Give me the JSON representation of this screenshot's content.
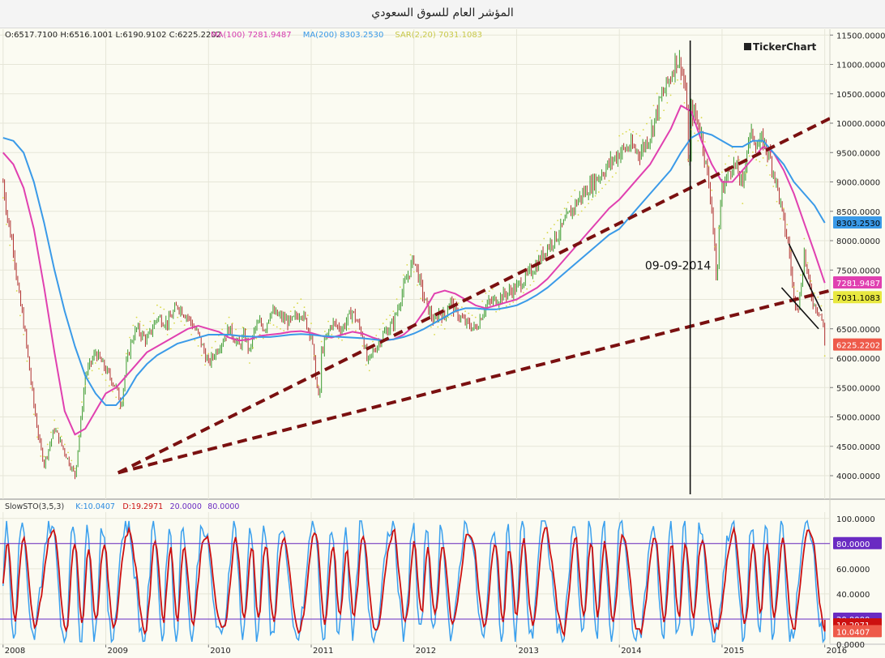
{
  "window": {
    "title": "المؤشر العام للسوق السعودي"
  },
  "logo": {
    "text": "TickerChart"
  },
  "colors": {
    "price": "#3d8c2e",
    "ma100": "#e040b0",
    "ma200": "#3a9ae8",
    "sar": "#d9d94a",
    "trend": "#7a1010",
    "stoK": "#3aa0ee",
    "stoD": "#cc1010",
    "stoLevel": "#6a2bc2",
    "grid": "#e6e6d8"
  },
  "chart_data": [
    {
      "type": "line",
      "panel": "price",
      "ohlc_readout": "O:6517.7100 H:6516.1001 L:6190.9102 C:6225.2202",
      "legend": [
        {
          "text": "MA(100) 7281.9487",
          "color": "#d63cb0"
        },
        {
          "text": "MA(200) 8303.2530",
          "color": "#3a9ae8"
        },
        {
          "text": "SAR(2,20) 7031.1083",
          "color": "#c9c94a"
        }
      ],
      "ylim": [
        3600,
        11600
      ],
      "y_ticks": [
        {
          "value": 4000,
          "label": "4000.0000"
        },
        {
          "value": 4500,
          "label": "4500.0000"
        },
        {
          "value": 5000,
          "label": "5000.0000"
        },
        {
          "value": 5500,
          "label": "5500.0000"
        },
        {
          "value": 6000,
          "label": "6000.0000"
        },
        {
          "value": 6500,
          "label": "6500.0000"
        },
        {
          "value": 7000,
          "label": "7000.0000"
        },
        {
          "value": 7500,
          "label": "7500.0000"
        },
        {
          "value": 8000,
          "label": "8000.0000"
        },
        {
          "value": 8500,
          "label": "8500.0000"
        },
        {
          "value": 9000,
          "label": "9000.0000"
        },
        {
          "value": 9500,
          "label": "9500.0000"
        },
        {
          "value": 10000,
          "label": "10000.0000"
        },
        {
          "value": 10500,
          "label": "10500.0000"
        },
        {
          "value": 11000,
          "label": "11000.0000"
        },
        {
          "value": 11500,
          "label": "11500.0000"
        }
      ],
      "xlim": [
        2007.97,
        2016.05
      ],
      "x_ticks": [
        {
          "value": 2008.0,
          "label": "2008"
        },
        {
          "value": 2009.0,
          "label": "2009"
        },
        {
          "value": 2010.0,
          "label": "2010"
        },
        {
          "value": 2011.0,
          "label": "2011"
        },
        {
          "value": 2012.0,
          "label": "2012"
        },
        {
          "value": 2013.0,
          "label": "2013"
        },
        {
          "value": 2014.0,
          "label": "2014"
        },
        {
          "value": 2015.0,
          "label": "2015"
        },
        {
          "value": 2016.0,
          "label": "2016"
        }
      ],
      "series": [
        {
          "name": "",
          "role": "price",
          "x": [
            2008.0,
            2008.05,
            2008.1,
            2008.15,
            2008.2,
            2008.25,
            2008.3,
            2008.35,
            2008.4,
            2008.5,
            2008.6,
            2008.7,
            2008.75,
            2008.8,
            2008.9,
            2009.0,
            2009.1,
            2009.15,
            2009.2,
            2009.25,
            2009.3,
            2009.4,
            2009.5,
            2009.6,
            2009.7,
            2009.8,
            2009.9,
            2010.0,
            2010.1,
            2010.2,
            2010.3,
            2010.35,
            2010.4,
            2010.45,
            2010.5,
            2010.55,
            2010.6,
            2010.7,
            2010.8,
            2010.9,
            2011.0,
            2011.05,
            2011.08,
            2011.1,
            2011.2,
            2011.3,
            2011.4,
            2011.5,
            2011.55,
            2011.6,
            2011.7,
            2011.8,
            2011.9,
            2012.0,
            2012.1,
            2012.2,
            2012.25,
            2012.3,
            2012.35,
            2012.4,
            2012.5,
            2012.6,
            2012.7,
            2012.8,
            2012.9,
            2013.0,
            2013.1,
            2013.2,
            2013.3,
            2013.4,
            2013.5,
            2013.6,
            2013.7,
            2013.8,
            2013.9,
            2014.0,
            2014.1,
            2014.2,
            2014.3,
            2014.4,
            2014.5,
            2014.55,
            2014.6,
            2014.65,
            2014.68,
            2014.7,
            2014.75,
            2014.8,
            2014.85,
            2014.9,
            2014.95,
            2014.98,
            2015.0,
            2015.05,
            2015.1,
            2015.15,
            2015.2,
            2015.25,
            2015.3,
            2015.35,
            2015.4,
            2015.45,
            2015.5,
            2015.55,
            2015.6,
            2015.65,
            2015.7,
            2015.75,
            2015.8,
            2015.85,
            2015.9,
            2015.95,
            2015.98,
            2016.0
          ],
          "y": [
            9000,
            8300,
            7900,
            7100,
            6600,
            5900,
            5200,
            4600,
            4200,
            4800,
            4400,
            4000,
            4800,
            5700,
            6100,
            5800,
            5500,
            5200,
            5900,
            6300,
            6500,
            6300,
            6700,
            6600,
            6900,
            6700,
            6400,
            5900,
            6200,
            6500,
            6200,
            6400,
            6100,
            6500,
            6600,
            6500,
            6800,
            6700,
            6600,
            6800,
            6400,
            5600,
            5200,
            6100,
            6600,
            6500,
            6800,
            6400,
            5900,
            6100,
            6400,
            6600,
            7200,
            7700,
            7000,
            6600,
            6800,
            6700,
            7000,
            6800,
            6600,
            6500,
            6900,
            7000,
            7100,
            7200,
            7400,
            7600,
            7900,
            8100,
            8400,
            8700,
            8900,
            9100,
            9300,
            9500,
            9600,
            9500,
            9800,
            10400,
            10800,
            11100,
            11000,
            10500,
            9000,
            10200,
            10100,
            9800,
            9200,
            8600,
            7200,
            8600,
            8900,
            9100,
            9300,
            9200,
            8900,
            9700,
            9800,
            9600,
            9700,
            9500,
            9200,
            8800,
            8300,
            7900,
            7000,
            6900,
            7800,
            7200,
            6900,
            6800,
            6600,
            6225.2202
          ]
        },
        {
          "name": "MA(100)",
          "role": "ma100",
          "x": [
            2008.0,
            2008.1,
            2008.2,
            2008.3,
            2008.4,
            2008.5,
            2008.6,
            2008.7,
            2008.8,
            2008.9,
            2009.0,
            2009.1,
            2009.2,
            2009.3,
            2009.4,
            2009.5,
            2009.6,
            2009.7,
            2009.8,
            2009.9,
            2010.0,
            2010.1,
            2010.2,
            2010.3,
            2010.4,
            2010.5,
            2010.6,
            2010.7,
            2010.8,
            2010.9,
            2011.0,
            2011.1,
            2011.2,
            2011.3,
            2011.4,
            2011.5,
            2011.6,
            2011.7,
            2011.8,
            2011.9,
            2012.0,
            2012.1,
            2012.2,
            2012.3,
            2012.4,
            2012.5,
            2012.6,
            2012.7,
            2012.8,
            2012.9,
            2013.0,
            2013.1,
            2013.2,
            2013.3,
            2013.4,
            2013.5,
            2013.6,
            2013.7,
            2013.8,
            2013.9,
            2014.0,
            2014.1,
            2014.2,
            2014.3,
            2014.4,
            2014.5,
            2014.6,
            2014.7,
            2014.8,
            2014.9,
            2015.0,
            2015.1,
            2015.2,
            2015.3,
            2015.4,
            2015.5,
            2015.6,
            2015.7,
            2015.8,
            2015.9,
            2016.0
          ],
          "y": [
            9500,
            9300,
            8900,
            8200,
            7200,
            6100,
            5100,
            4700,
            4800,
            5100,
            5400,
            5500,
            5700,
            5900,
            6100,
            6200,
            6300,
            6400,
            6500,
            6550,
            6500,
            6450,
            6350,
            6300,
            6320,
            6380,
            6400,
            6420,
            6450,
            6460,
            6430,
            6380,
            6350,
            6400,
            6450,
            6420,
            6350,
            6300,
            6320,
            6400,
            6550,
            6800,
            7100,
            7150,
            7100,
            7000,
            6900,
            6850,
            6900,
            6950,
            7000,
            7100,
            7200,
            7350,
            7550,
            7750,
            7950,
            8150,
            8350,
            8550,
            8700,
            8900,
            9100,
            9300,
            9600,
            9900,
            10300,
            10200,
            9700,
            9300,
            9000,
            9000,
            9200,
            9400,
            9600,
            9500,
            9200,
            8800,
            8300,
            7800,
            7280
          ]
        },
        {
          "name": "MA(200)",
          "role": "ma200",
          "x": [
            2008.0,
            2008.1,
            2008.2,
            2008.3,
            2008.4,
            2008.5,
            2008.6,
            2008.7,
            2008.8,
            2008.9,
            2009.0,
            2009.1,
            2009.2,
            2009.3,
            2009.4,
            2009.5,
            2009.6,
            2009.7,
            2009.8,
            2009.9,
            2010.0,
            2010.1,
            2010.2,
            2010.3,
            2010.4,
            2010.5,
            2010.6,
            2010.7,
            2010.8,
            2010.9,
            2011.0,
            2011.1,
            2011.2,
            2011.3,
            2011.4,
            2011.5,
            2011.6,
            2011.7,
            2011.8,
            2011.9,
            2012.0,
            2012.1,
            2012.2,
            2012.3,
            2012.4,
            2012.5,
            2012.6,
            2012.7,
            2012.8,
            2012.9,
            2013.0,
            2013.1,
            2013.2,
            2013.3,
            2013.4,
            2013.5,
            2013.6,
            2013.7,
            2013.8,
            2013.9,
            2014.0,
            2014.1,
            2014.2,
            2014.3,
            2014.4,
            2014.5,
            2014.6,
            2014.7,
            2014.8,
            2014.9,
            2015.0,
            2015.1,
            2015.2,
            2015.3,
            2015.4,
            2015.5,
            2015.6,
            2015.7,
            2015.8,
            2015.9,
            2016.0
          ],
          "y": [
            9750,
            9700,
            9500,
            9000,
            8300,
            7500,
            6800,
            6200,
            5700,
            5400,
            5200,
            5200,
            5400,
            5700,
            5900,
            6050,
            6150,
            6250,
            6300,
            6350,
            6400,
            6400,
            6400,
            6380,
            6370,
            6360,
            6360,
            6380,
            6400,
            6410,
            6400,
            6380,
            6370,
            6360,
            6350,
            6340,
            6320,
            6300,
            6320,
            6360,
            6420,
            6500,
            6600,
            6700,
            6800,
            6850,
            6850,
            6830,
            6830,
            6860,
            6900,
            6980,
            7080,
            7200,
            7350,
            7500,
            7650,
            7800,
            7950,
            8100,
            8200,
            8400,
            8600,
            8800,
            9000,
            9200,
            9500,
            9750,
            9850,
            9800,
            9700,
            9600,
            9600,
            9700,
            9700,
            9500,
            9300,
            9000,
            8800,
            8600,
            8303
          ]
        },
        {
          "name": "",
          "role": "trend",
          "dash": true,
          "x": [
            2009.12,
            2016.05
          ],
          "y": [
            4050,
            10080
          ]
        },
        {
          "name": "",
          "role": "trend",
          "dash": true,
          "x": [
            2009.12,
            2016.05
          ],
          "y": [
            4050,
            7150
          ]
        },
        {
          "name": "",
          "role": "channel",
          "x": [
            2015.65,
            2015.97
          ],
          "y": [
            7950,
            6800
          ]
        },
        {
          "name": "",
          "role": "channel",
          "x": [
            2015.58,
            2015.94
          ],
          "y": [
            7200,
            6500
          ]
        }
      ],
      "annotations": [
        {
          "text": "09-09-2014",
          "x": 2014.25,
          "y": 7550,
          "vline_x": 2014.69
        }
      ],
      "price_tags": [
        {
          "value": 8303.253,
          "label": "8303.2530",
          "color": "#3a9ae8",
          "text_color": "#000000"
        },
        {
          "value": 7281.9487,
          "label": "7281.9487",
          "color": "#e040b0",
          "text_color": "#ffffff"
        },
        {
          "value": 7031.1083,
          "label": "7031.1083",
          "color": "#e8e840",
          "text_color": "#000000"
        },
        {
          "value": 6225.2202,
          "label": "6225.2202",
          "color": "#ee5a4a",
          "text_color": "#ffffff"
        }
      ]
    },
    {
      "type": "line",
      "panel": "stochastic",
      "legend": [
        {
          "text": "SlowSTO(3,5,3)",
          "color": "#333333"
        },
        {
          "text": "K:10.0407",
          "color": "#2a8ae0"
        },
        {
          "text": "D:19.2971",
          "color": "#cc1010"
        },
        {
          "text": "20.0000",
          "color": "#6a2bc2"
        },
        {
          "text": "80.0000",
          "color": "#6a2bc2"
        }
      ],
      "ylim": [
        0,
        105
      ],
      "y_ticks": [
        {
          "value": 0,
          "label": "0.0000"
        },
        {
          "value": 20,
          "label": "20.0000"
        },
        {
          "value": 40,
          "label": "40.0000"
        },
        {
          "value": 60,
          "label": "60.0000"
        },
        {
          "value": 80,
          "label": "80.0000"
        },
        {
          "value": 100,
          "label": "100.0000"
        }
      ],
      "levels": [
        20,
        80
      ],
      "series": [
        {
          "name": "K",
          "role": "stoK",
          "last": 10.0407
        },
        {
          "name": "D",
          "role": "stoD",
          "last": 19.2971
        }
      ],
      "price_tags": [
        {
          "value": 80,
          "label": "80.0000",
          "color": "#6a2bc2",
          "text_color": "#ffffff"
        },
        {
          "value": 20,
          "label": "20.0000",
          "color": "#6a2bc2",
          "text_color": "#ffffff"
        },
        {
          "value": 19.2971,
          "label": "19.2971",
          "color": "#cc1010",
          "text_color": "#ffffff",
          "nudge": 1
        },
        {
          "value": 10.0407,
          "label": "10.0407",
          "color": "#ee5a4a",
          "text_color": "#ffffff"
        }
      ]
    }
  ]
}
